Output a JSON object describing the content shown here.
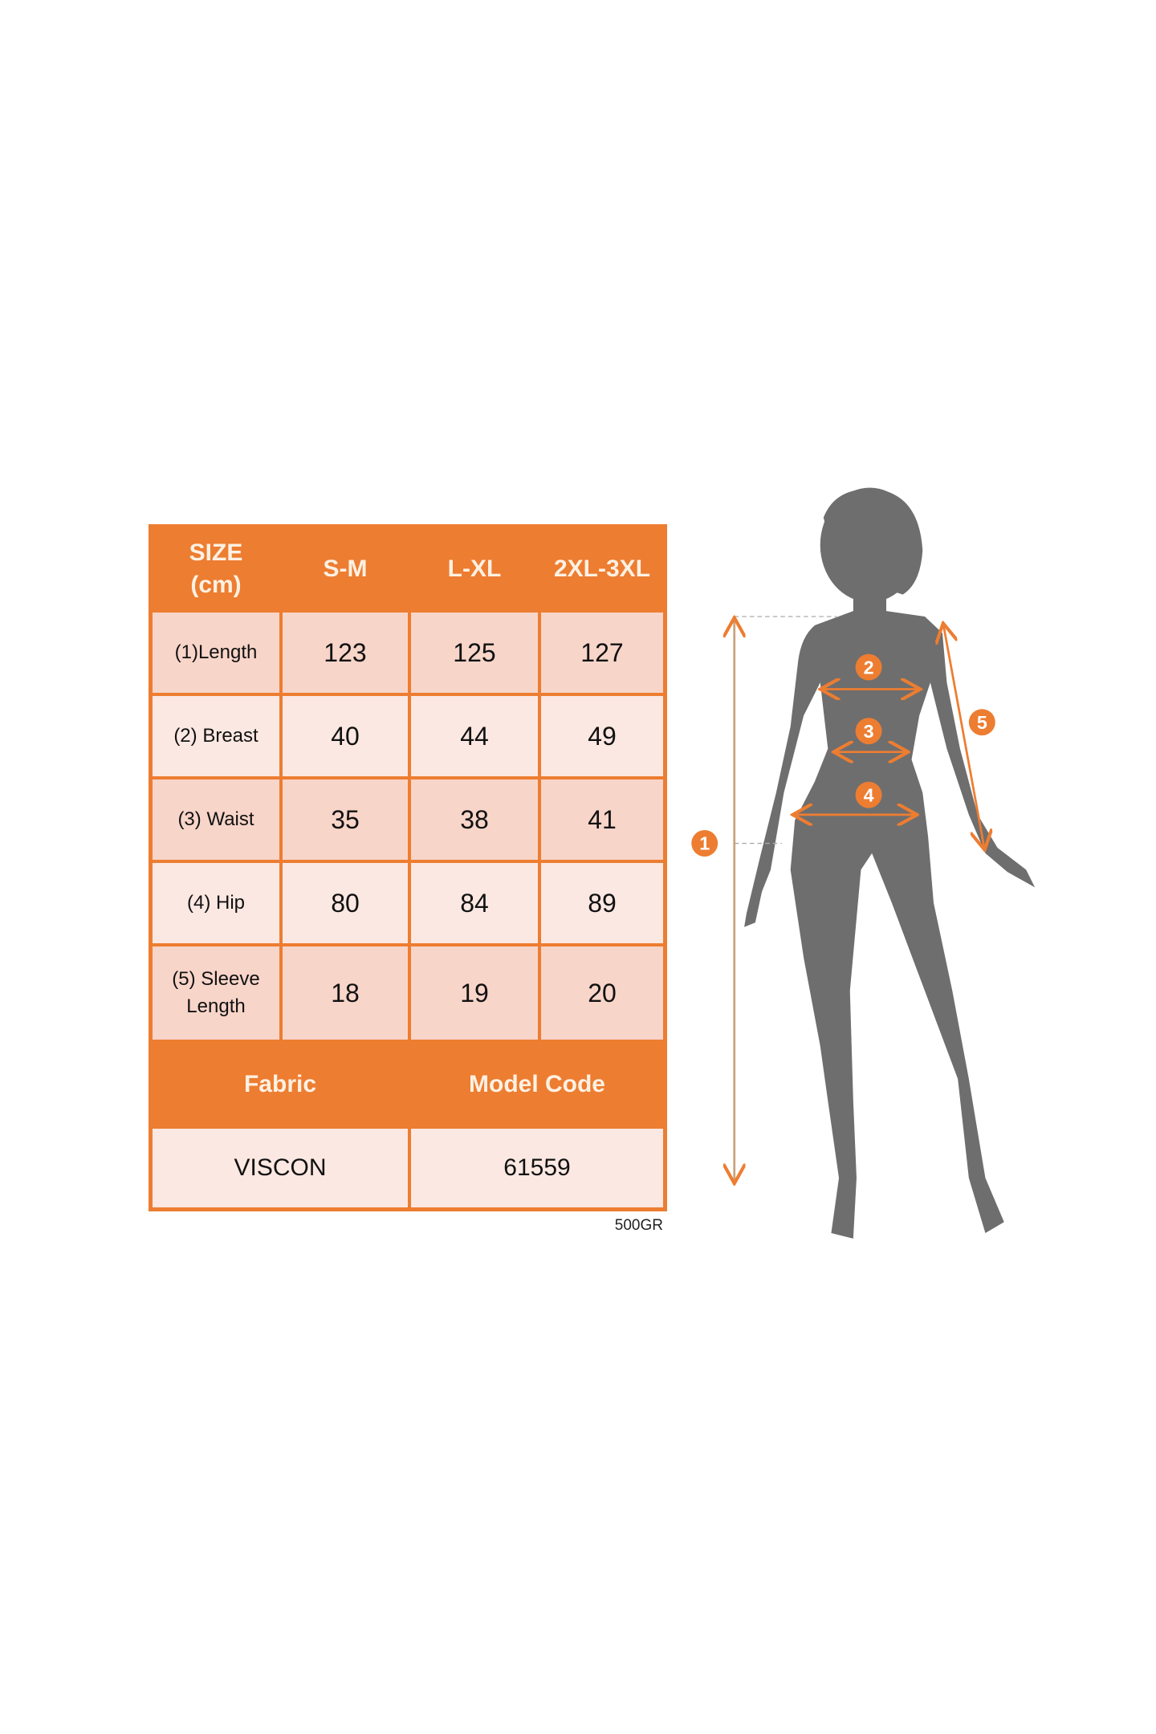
{
  "size_table": {
    "header": [
      "SIZE\n(cm)",
      "S-M",
      "L-XL",
      "2XL-3XL"
    ],
    "header_size": "SIZE",
    "header_unit": "(cm)",
    "rows": [
      {
        "label": "(1)Length",
        "values": [
          "123",
          "125",
          "127"
        ]
      },
      {
        "label": "(2) Breast",
        "values": [
          "40",
          "44",
          "49"
        ]
      },
      {
        "label": "(3) Waist",
        "values": [
          "35",
          "38",
          "41"
        ]
      },
      {
        "label": "(4) Hip",
        "values": [
          "80",
          "84",
          "89"
        ]
      },
      {
        "label": "(5) Sleeve Length",
        "values": [
          "18",
          "19",
          "20"
        ]
      }
    ],
    "fabric_label": "Fabric",
    "model_code_label": "Model Code",
    "fabric_value": "VISCON",
    "model_code_value": "61559",
    "weight_note": "500GR"
  },
  "figure": {
    "markers": [
      "1",
      "2",
      "3",
      "4",
      "5"
    ],
    "accent_color": "#ED7D31",
    "silhouette_color": "#6E6E6E"
  },
  "colors": {
    "header": "#ED7D31",
    "cell_dark": "#F8D5C9",
    "cell_light": "#FBE8E2"
  }
}
